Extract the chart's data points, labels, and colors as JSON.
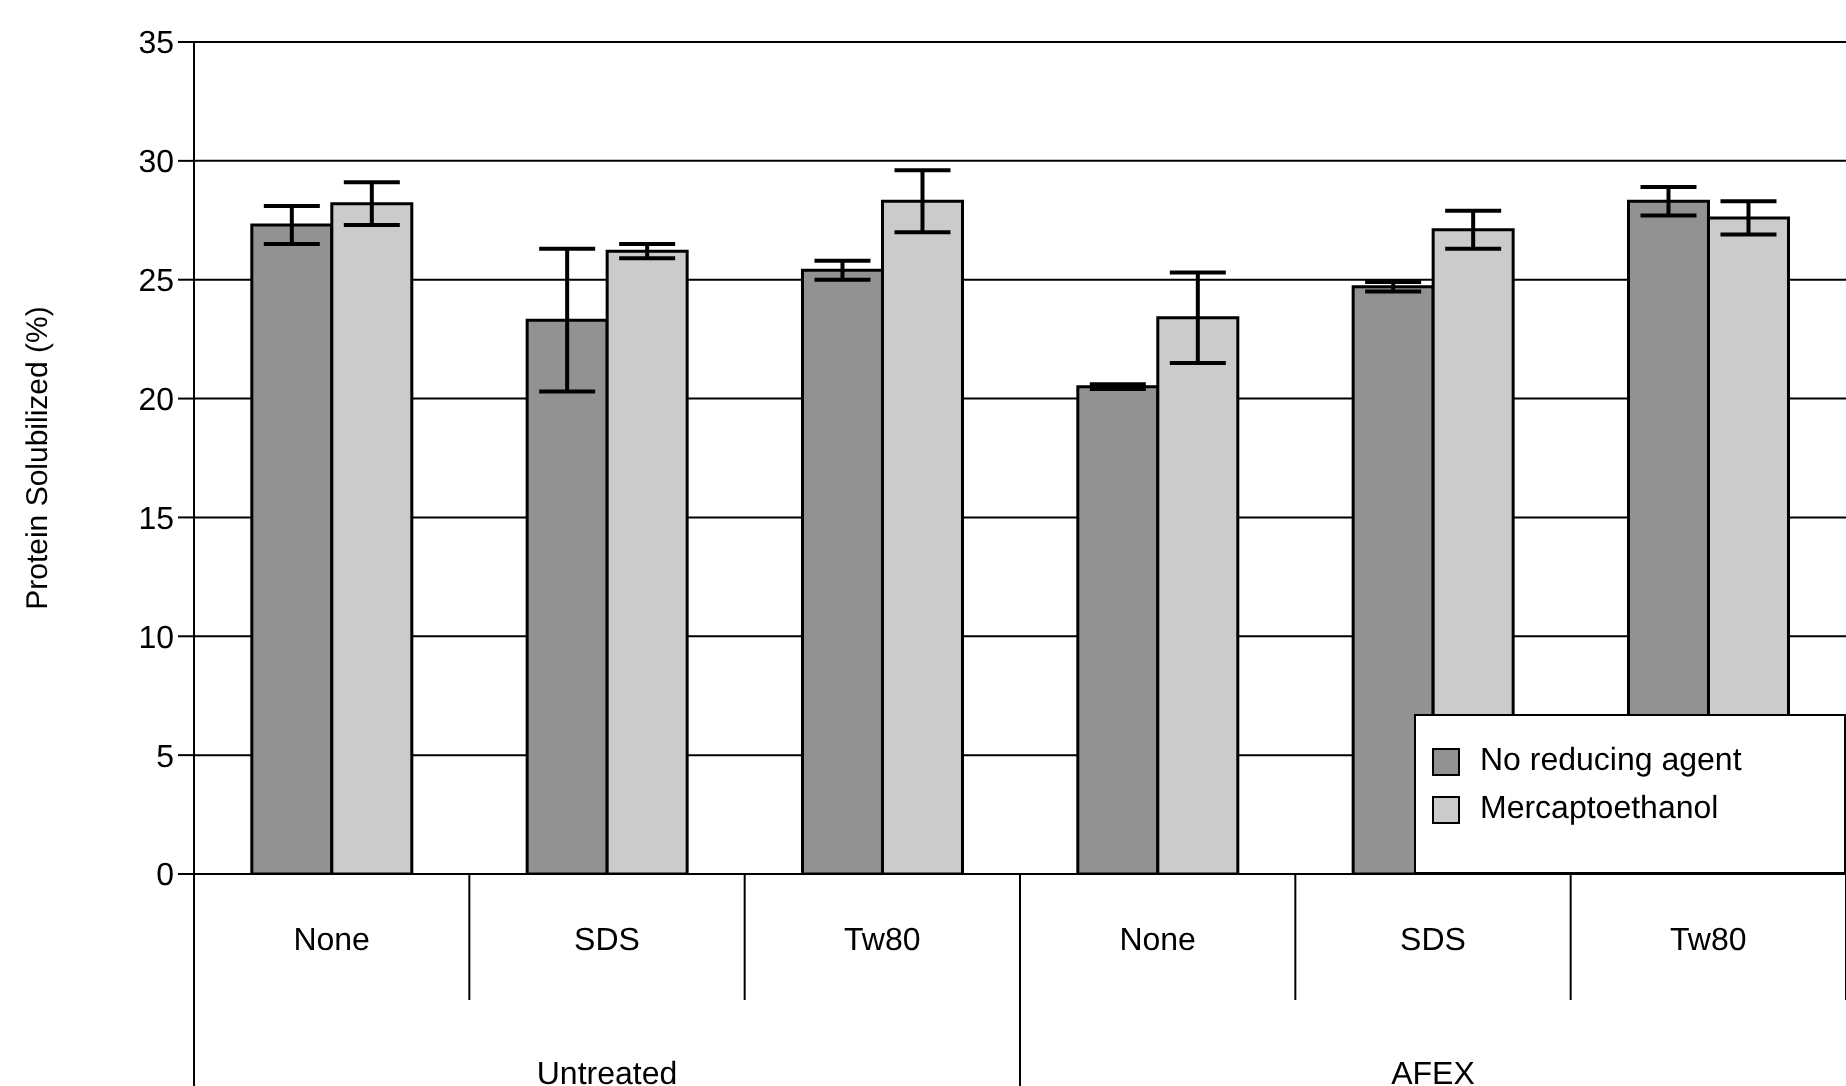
{
  "chart_data": {
    "type": "bar",
    "ylabel": "Protein Solubilized (%)",
    "categories": [
      "None",
      "SDS",
      "Tw80",
      "None",
      "SDS",
      "Tw80"
    ],
    "annotations": [
      "Untreated",
      "AFEX"
    ],
    "series": [
      {
        "name": "No reducing agent",
        "color": "#929292",
        "values": [
          27.3,
          23.3,
          25.4,
          20.5,
          24.7,
          28.3
        ],
        "errors": [
          0.8,
          3.0,
          0.4,
          0.1,
          0.2,
          0.6
        ]
      },
      {
        "name": "Mercaptoethanol",
        "color": "#cacbcd",
        "values": [
          28.2,
          26.2,
          28.3,
          23.4,
          27.1,
          27.6
        ],
        "errors": [
          0.9,
          0.3,
          1.3,
          1.9,
          0.8,
          0.7
        ]
      }
    ],
    "ylim": [
      0,
      35
    ],
    "yticks": [
      0,
      5,
      10,
      15,
      20,
      25,
      30,
      35
    ],
    "grid": "y",
    "legend": "bottom right"
  }
}
